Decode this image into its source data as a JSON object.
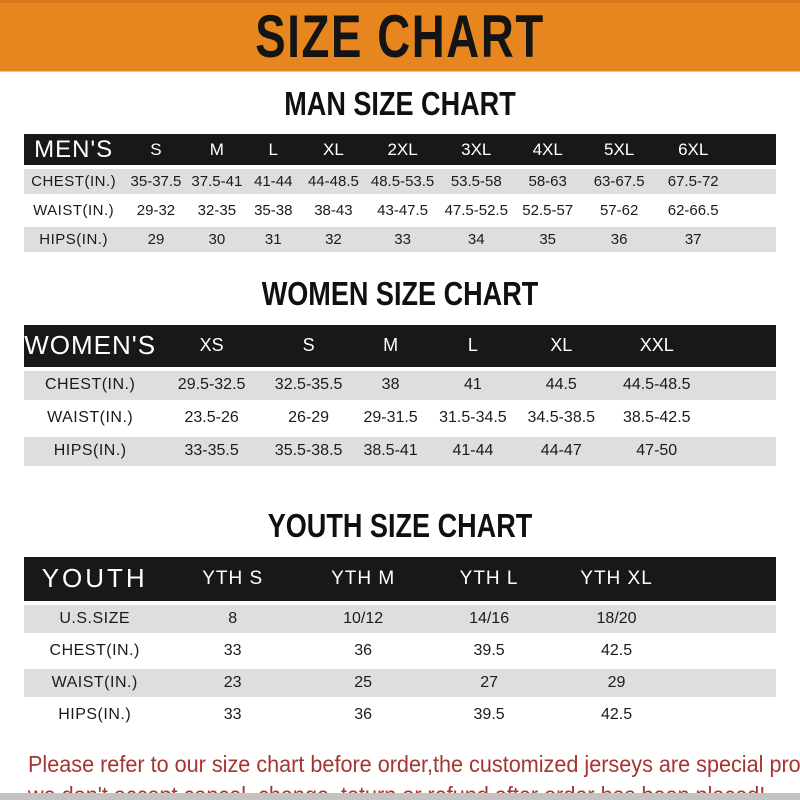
{
  "banner": {
    "title": "SIZE CHART",
    "bg_color": "#E7861E",
    "text_color": "#141414"
  },
  "sections": [
    {
      "heading": "MAN SIZE CHART",
      "header_label": "MEN'S",
      "columns": [
        "S",
        "M",
        "L",
        "XL",
        "2XL",
        "3XL",
        "4XL",
        "5XL",
        "6XL"
      ],
      "rows": [
        {
          "label": "CHEST(IN.)",
          "values": [
            "35-37.5",
            "37.5-41",
            "41-44",
            "44-48.5",
            "48.5-53.5",
            "53.5-58",
            "58-63",
            "63-67.5",
            "67.5-72"
          ]
        },
        {
          "label": "WAIST(IN.)",
          "values": [
            "29-32",
            "32-35",
            "35-38",
            "38-43",
            "43-47.5",
            "47.5-52.5",
            "52.5-57",
            "57-62",
            "62-66.5"
          ]
        },
        {
          "label": "HIPS(IN.)",
          "values": [
            "29",
            "30",
            "31",
            "32",
            "33",
            "34",
            "35",
            "36",
            "37"
          ]
        }
      ]
    },
    {
      "heading": "WOMEN SIZE CHART",
      "header_label": "WOMEN'S",
      "columns": [
        "XS",
        "S",
        "M",
        "L",
        "XL",
        "XXL"
      ],
      "rows": [
        {
          "label": "CHEST(IN.)",
          "values": [
            "29.5-32.5",
            "32.5-35.5",
            "38",
            "41",
            "44.5",
            "44.5-48.5"
          ]
        },
        {
          "label": "WAIST(IN.)",
          "values": [
            "23.5-26",
            "26-29",
            "29-31.5",
            "31.5-34.5",
            "34.5-38.5",
            "38.5-42.5"
          ]
        },
        {
          "label": "HIPS(IN.)",
          "values": [
            "33-35.5",
            "35.5-38.5",
            "38.5-41",
            "41-44",
            "44-47",
            "47-50"
          ]
        }
      ]
    },
    {
      "heading": "YOUTH SIZE CHART",
      "header_label": "YOUTH",
      "columns": [
        "YTH S",
        "YTH M",
        "YTH L",
        "YTH XL"
      ],
      "rows": [
        {
          "label": "U.S.SIZE",
          "values": [
            "8",
            "10/12",
            "14/16",
            "18/20"
          ]
        },
        {
          "label": "CHEST(IN.)",
          "values": [
            "33",
            "36",
            "39.5",
            "42.5"
          ]
        },
        {
          "label": "WAIST(IN.)",
          "values": [
            "23",
            "25",
            "27",
            "29"
          ]
        },
        {
          "label": "HIPS(IN.)",
          "values": [
            "33",
            "36",
            "39.5",
            "42.5"
          ]
        }
      ]
    }
  ],
  "footer": {
    "line1": "Please refer to our size chart before order,the customized jerseys are special products,",
    "line2": "we don't accept cancel, change, teturn or refund after order has been placed!",
    "text_color": "#A53530"
  },
  "colors": {
    "banner_orange": "#E7861E",
    "header_bar_black": "#181818",
    "row_gray": "#DEDEDE",
    "footer_red": "#A53530"
  }
}
